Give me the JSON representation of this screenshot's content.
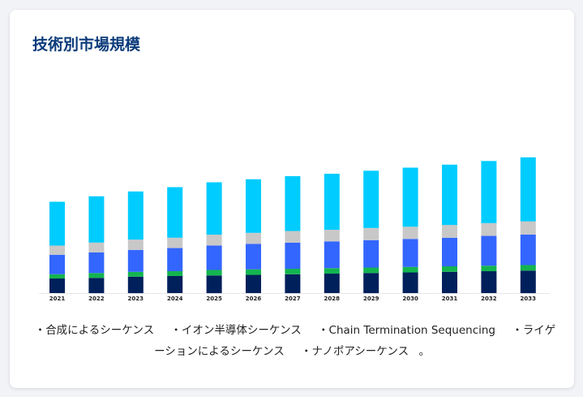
{
  "title": "技術別市場規模",
  "chart_data": {
    "type": "bar",
    "stacked": true,
    "title": "技術別市場規模",
    "xlabel": "",
    "ylabel": "",
    "grid": false,
    "legend_position": "bottom",
    "categories": [
      "2021",
      "2022",
      "2023",
      "2024",
      "2025",
      "2026",
      "2027",
      "2028",
      "2029",
      "2030",
      "2031",
      "2032",
      "2033"
    ],
    "series": [
      {
        "name": "合成によるシーケンス",
        "color": "#00205b",
        "values": [
          24,
          25,
          27,
          28,
          29,
          30,
          31,
          32,
          33,
          34,
          35,
          36,
          37
        ]
      },
      {
        "name": "イオン半導体シーケンス",
        "color": "#14b450",
        "values": [
          7,
          8,
          8,
          8,
          9,
          9,
          9,
          9,
          9,
          9,
          9,
          9,
          9
        ]
      },
      {
        "name": "Chain Termination Sequencing",
        "color": "#3366ff",
        "values": [
          32,
          34,
          36,
          38,
          40,
          42,
          43,
          44,
          45,
          46,
          47,
          49,
          50
        ]
      },
      {
        "name": "ライゲーションによるシーケンス",
        "color": "#c8c8c8",
        "values": [
          15,
          16,
          17,
          17,
          18,
          18,
          19,
          19,
          20,
          20,
          21,
          21,
          22
        ]
      },
      {
        "name": "ナノポアシーケンス",
        "color": "#00ccff",
        "values": [
          72,
          76,
          79,
          83,
          86,
          88,
          90,
          92,
          94,
          97,
          99,
          102,
          105
        ]
      }
    ]
  },
  "legend_suffix": "。"
}
